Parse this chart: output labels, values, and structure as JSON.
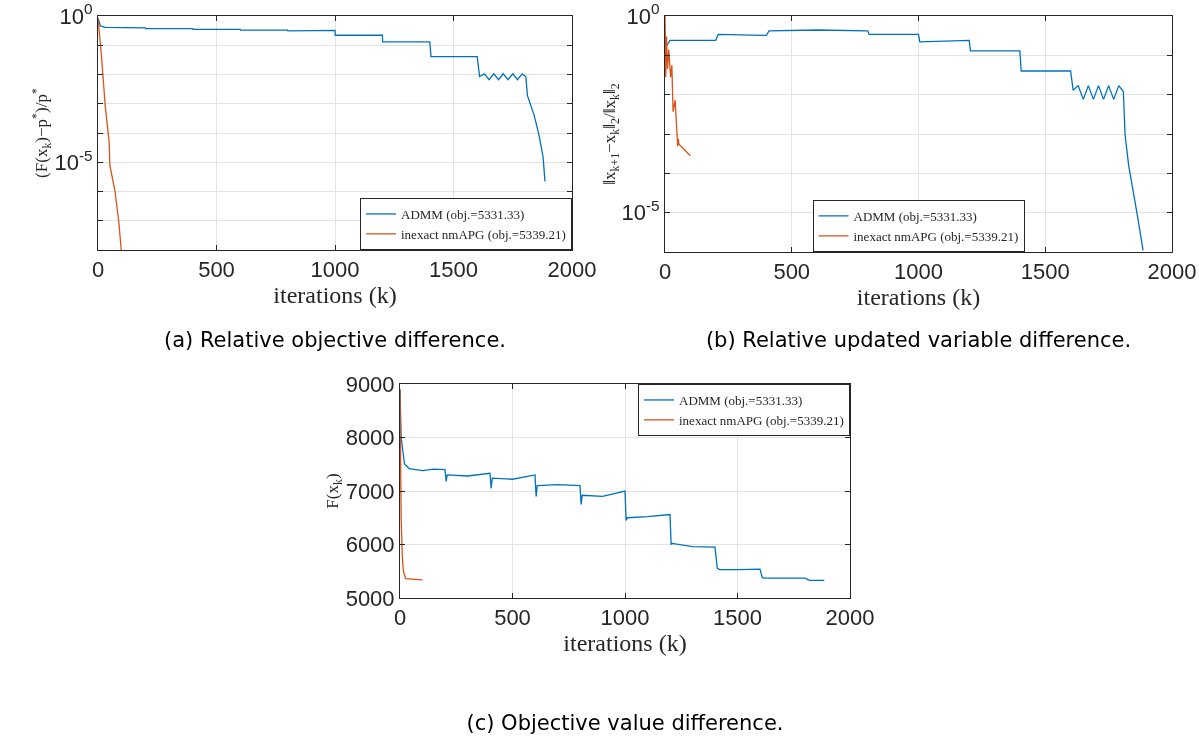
{
  "chart_data": [
    {
      "type": "line",
      "title": "(a) Relative objective difference.",
      "xlabel": "iterations (k)",
      "ylabel": "(F(x$_{k}$)−p$^{*}$)/p$^{*}$",
      "xlim": [
        0,
        2000
      ],
      "xticks": [
        0,
        500,
        1000,
        1500,
        2000
      ],
      "ylim": [
        1e-08,
        1
      ],
      "yticks": [
        {
          "value": 1,
          "label": "10$^{0}$"
        },
        {
          "value": 0.1,
          "label": null
        },
        {
          "value": 0.01,
          "label": null
        },
        {
          "value": 0.001,
          "label": null
        },
        {
          "value": 0.0001,
          "label": null
        },
        {
          "value": 1e-05,
          "label": "10$^{-5}$"
        },
        {
          "value": 1e-06,
          "label": null
        },
        {
          "value": 1e-07,
          "label": null
        }
      ],
      "log": "y",
      "grid": true,
      "legend": "bottom right",
      "marker": "none",
      "line_style": "solid",
      "series": [
        {
          "name": "ADMM (obj.=5331.33)",
          "color": "#0072bd",
          "x": [
            0,
            10,
            30,
            200,
            201,
            400,
            401,
            600,
            601,
            800,
            801,
            1000,
            1001,
            1200,
            1201,
            1400,
            1405,
            1600,
            1610,
            1630,
            1650,
            1670,
            1690,
            1710,
            1730,
            1750,
            1770,
            1790,
            1805,
            1812,
            1840,
            1860,
            1878,
            1886
          ],
          "values": [
            0.85,
            0.46,
            0.41,
            0.39,
            0.37,
            0.37,
            0.35,
            0.35,
            0.33,
            0.33,
            0.31,
            0.32,
            0.22,
            0.22,
            0.13,
            0.13,
            0.041,
            0.041,
            0.0085,
            0.0105,
            0.0066,
            0.0105,
            0.0066,
            0.0105,
            0.0066,
            0.0105,
            0.0066,
            0.0105,
            0.0085,
            0.0019,
            0.00041,
            9.1e-05,
            1.5e-05,
            2.2e-06
          ]
        },
        {
          "name": "inexact nmAPG (obj.=5339.21)",
          "color": "#d95319",
          "x": [
            0,
            15,
            31,
            47,
            50,
            72,
            88,
            98
          ],
          "values": [
            0.85,
            0.038,
            0.00076,
            5e-05,
            7.9e-06,
            1e-06,
            8.7e-08,
            1e-08
          ]
        }
      ]
    },
    {
      "type": "line",
      "title": "(b) Relative updated variable difference.",
      "xlabel": "iterations (k)",
      "ylabel": "‖x$_{k+1}$−x$_{k}$‖$_{2}$/‖x$_{k}$‖$_{2}$",
      "xlim": [
        0,
        2000
      ],
      "xticks": [
        0,
        500,
        1000,
        1500,
        2000
      ],
      "ylim": [
        1e-06,
        1
      ],
      "yticks": [
        {
          "value": 1,
          "label": "10$^{0}$"
        },
        {
          "value": 0.1,
          "label": null
        },
        {
          "value": 0.01,
          "label": null
        },
        {
          "value": 0.001,
          "label": null
        },
        {
          "value": 0.0001,
          "label": null
        },
        {
          "value": 1e-05,
          "label": "10$^{-5}$"
        }
      ],
      "log": "y",
      "grid": true,
      "legend": "bottom",
      "marker": "none",
      "line_style": "solid",
      "series": [
        {
          "name": "ADMM (obj.=5331.33)",
          "color": "#0072bd",
          "x": [
            5,
            20,
            200,
            210,
            400,
            410,
            600,
            800,
            805,
            1000,
            1005,
            1200,
            1205,
            1400,
            1405,
            1600,
            1610,
            1630,
            1650,
            1670,
            1690,
            1710,
            1730,
            1750,
            1770,
            1790,
            1808,
            1815,
            1829,
            1861,
            1886
          ],
          "values": [
            0.17,
            0.24,
            0.24,
            0.34,
            0.32,
            0.42,
            0.44,
            0.42,
            0.34,
            0.34,
            0.22,
            0.24,
            0.13,
            0.13,
            0.04,
            0.04,
            0.013,
            0.017,
            0.0076,
            0.017,
            0.0076,
            0.017,
            0.0076,
            0.017,
            0.0076,
            0.017,
            0.012,
            0.00095,
            0.00016,
            1.05e-05,
            1.1e-06
          ]
        },
        {
          "name": "inexact nmAPG (obj.=5339.21)",
          "color": "#d95319",
          "x": [
            0,
            3,
            6,
            10,
            15,
            22,
            27,
            32,
            40,
            50,
            52,
            55,
            100
          ],
          "values": [
            1,
            0.028,
            0.3,
            0.045,
            0.14,
            0.028,
            0.056,
            0.0037,
            0.0073,
            0.00049,
            0.00076,
            0.00055,
            0.00028
          ]
        }
      ]
    },
    {
      "type": "line",
      "title": "(c) Objective value difference.",
      "xlabel": "iterations (k)",
      "ylabel": "F(x$_{k}$)",
      "xlim": [
        0,
        2000
      ],
      "xticks": [
        0,
        500,
        1000,
        1500,
        2000
      ],
      "ylim": [
        5000,
        9000
      ],
      "yticks": [
        5000,
        6000,
        7000,
        8000,
        9000
      ],
      "grid": true,
      "legend": "top right",
      "marker": "none",
      "line_style": "solid",
      "series": [
        {
          "name": "ADMM (obj.=5331.33)",
          "color": "#0072bd",
          "x": [
            0,
            5,
            20,
            40,
            100,
            150,
            200,
            205,
            210,
            300,
            400,
            405,
            410,
            500,
            600,
            605,
            610,
            700,
            800,
            805,
            810,
            900,
            1000,
            1005,
            1010,
            1100,
            1200,
            1205,
            1210,
            1300,
            1400,
            1410,
            1420,
            1500,
            1600,
            1610,
            1620,
            1700,
            1800,
            1820,
            1886
          ],
          "values": [
            8900,
            8000,
            7510,
            7420,
            7380,
            7410,
            7400,
            7180,
            7300,
            7280,
            7330,
            7050,
            7240,
            7220,
            7300,
            6900,
            7100,
            7120,
            7100,
            6750,
            6920,
            6900,
            7000,
            6450,
            6500,
            6520,
            6560,
            6000,
            6020,
            5960,
            5950,
            5560,
            5530,
            5530,
            5540,
            5380,
            5370,
            5370,
            5370,
            5330,
            5330
          ]
        },
        {
          "name": "inexact nmAPG (obj.=5339.21)",
          "color": "#d95319",
          "x": [
            0,
            5,
            10,
            15,
            25,
            100
          ],
          "values": [
            8900,
            6500,
            5800,
            5500,
            5360,
            5340
          ]
        }
      ]
    }
  ]
}
